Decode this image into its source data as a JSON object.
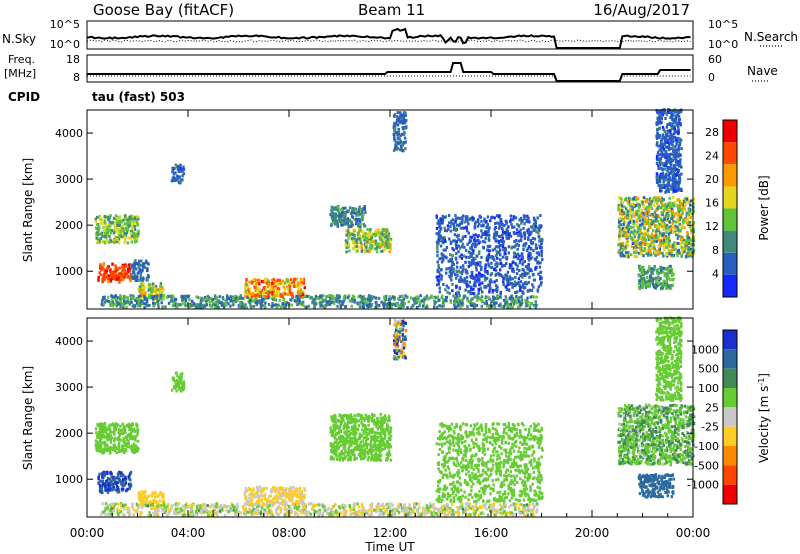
{
  "header": {
    "station": "Goose Bay (fitACF)",
    "beam": "Beam 11",
    "date": "16/Aug/2017"
  },
  "top_panel": {
    "left_label": "N.Sky",
    "right_label": "N.Search",
    "left_ticks": [
      "10^5",
      "10^0"
    ],
    "right_ticks": [
      "10^5",
      "10^0"
    ]
  },
  "freq_panel": {
    "left_label": "Freq.",
    "left_unit": "[MHz]",
    "right_label": "Nave",
    "left_ticks": [
      "18",
      "8"
    ],
    "right_ticks": [
      "60",
      "0"
    ]
  },
  "cpid": {
    "label": "CPID",
    "mode": "tau (fast) 503"
  },
  "chart_data": [
    {
      "type": "heatmap",
      "panel": "power",
      "ylabel": "Slant Range [km]",
      "xlabel": "Time UT",
      "x_ticks": [
        "00:00",
        "04:00",
        "08:00",
        "12:00",
        "16:00",
        "20:00",
        "00:00"
      ],
      "x_range_hours": [
        0,
        24
      ],
      "y_ticks": [
        1000,
        2000,
        3000,
        4000
      ],
      "y_range_km": [
        180,
        4500
      ],
      "colorbar": {
        "label": "Power [dB]",
        "ticks": [
          "4",
          "8",
          "12",
          "16",
          "20",
          "24",
          "28"
        ],
        "range": [
          0,
          30
        ],
        "colors": [
          "#1428ff",
          "#2a5fbf",
          "#3f8a7a",
          "#5ec43a",
          "#e3d61c",
          "#ff9900",
          "#ff4a00",
          "#ee0000"
        ]
      },
      "echo_regions": [
        {
          "t0": 0.4,
          "t1": 1.7,
          "r0": 750,
          "r1": 1150,
          "v0": 22,
          "v1": 29
        },
        {
          "t0": 0.3,
          "t1": 2.0,
          "r0": 1600,
          "r1": 2200,
          "v0": 8,
          "v1": 18
        },
        {
          "t0": 1.7,
          "t1": 2.4,
          "r0": 780,
          "r1": 1220,
          "v0": 4,
          "v1": 9
        },
        {
          "t0": 2.0,
          "t1": 3.0,
          "r0": 380,
          "r1": 720,
          "v0": 9,
          "v1": 22
        },
        {
          "t0": 0.5,
          "t1": 17.8,
          "r0": 200,
          "r1": 460,
          "v0": 5,
          "v1": 14
        },
        {
          "t0": 6.2,
          "t1": 8.6,
          "r0": 430,
          "r1": 820,
          "v0": 14,
          "v1": 27
        },
        {
          "t0": 3.3,
          "t1": 3.8,
          "r0": 2900,
          "r1": 3300,
          "v0": 3,
          "v1": 8
        },
        {
          "t0": 9.6,
          "t1": 11.0,
          "r0": 1950,
          "r1": 2400,
          "v0": 5,
          "v1": 12
        },
        {
          "t0": 10.2,
          "t1": 12.0,
          "r0": 1400,
          "r1": 1900,
          "v0": 8,
          "v1": 20
        },
        {
          "t0": 12.1,
          "t1": 12.6,
          "r0": 3600,
          "r1": 4450,
          "v0": 4,
          "v1": 9
        },
        {
          "t0": 13.8,
          "t1": 18.0,
          "r0": 500,
          "r1": 2200,
          "v0": 3,
          "v1": 8
        },
        {
          "t0": 21.0,
          "t1": 24.0,
          "r0": 1300,
          "r1": 2600,
          "v0": 6,
          "v1": 21
        },
        {
          "t0": 21.8,
          "t1": 23.2,
          "r0": 600,
          "r1": 1100,
          "v0": 6,
          "v1": 15
        },
        {
          "t0": 22.5,
          "t1": 23.5,
          "r0": 2700,
          "r1": 4500,
          "v0": 3,
          "v1": 8
        }
      ]
    },
    {
      "type": "heatmap",
      "panel": "velocity",
      "ylabel": "Slant Range [km]",
      "xlabel": "Time UT",
      "x_ticks": [
        "00:00",
        "04:00",
        "08:00",
        "12:00",
        "16:00",
        "20:00",
        "00:00"
      ],
      "x_range_hours": [
        0,
        24
      ],
      "y_ticks": [
        1000,
        2000,
        3000,
        4000
      ],
      "y_range_km": [
        180,
        4500
      ],
      "colorbar": {
        "label": "Velocity [m s^-1]",
        "ticks": [
          "1000",
          "500",
          "100",
          "25",
          "-25",
          "-100",
          "-500",
          "-1000"
        ],
        "colors": [
          "#1b2fcc",
          "#2b6a9e",
          "#3f8a56",
          "#66cc33",
          "#c8c8c8",
          "#ffcc22",
          "#ff8800",
          "#ff4400",
          "#ee0000"
        ]
      },
      "echo_regions": [
        {
          "t0": 0.4,
          "t1": 1.7,
          "r0": 700,
          "r1": 1150,
          "v0": 300,
          "v1": 700
        },
        {
          "t0": 0.3,
          "t1": 2.0,
          "r0": 1550,
          "r1": 2200,
          "v0": -20,
          "v1": 20
        },
        {
          "t0": 2.0,
          "t1": 3.0,
          "r0": 380,
          "r1": 720,
          "v0": -450,
          "v1": -150
        },
        {
          "t0": 0.5,
          "t1": 17.8,
          "r0": 200,
          "r1": 460,
          "v0": -150,
          "v1": 30
        },
        {
          "t0": 6.2,
          "t1": 8.6,
          "r0": 430,
          "r1": 820,
          "v0": -160,
          "v1": -60
        },
        {
          "t0": 3.3,
          "t1": 3.8,
          "r0": 2900,
          "r1": 3300,
          "v0": -20,
          "v1": 20
        },
        {
          "t0": 9.6,
          "t1": 12.0,
          "r0": 1400,
          "r1": 2400,
          "v0": -20,
          "v1": 20
        },
        {
          "t0": 12.1,
          "t1": 12.6,
          "r0": 3600,
          "r1": 4450,
          "v0": -800,
          "v1": 800
        },
        {
          "t0": 13.8,
          "t1": 18.0,
          "r0": 500,
          "r1": 2200,
          "v0": -20,
          "v1": 20
        },
        {
          "t0": 21.0,
          "t1": 24.0,
          "r0": 1300,
          "r1": 2600,
          "v0": -30,
          "v1": 60
        },
        {
          "t0": 21.8,
          "t1": 23.2,
          "r0": 600,
          "r1": 1100,
          "v0": 150,
          "v1": 500
        },
        {
          "t0": 22.5,
          "t1": 23.5,
          "r0": 2700,
          "r1": 4500,
          "v0": -20,
          "v1": 20
        }
      ]
    }
  ]
}
